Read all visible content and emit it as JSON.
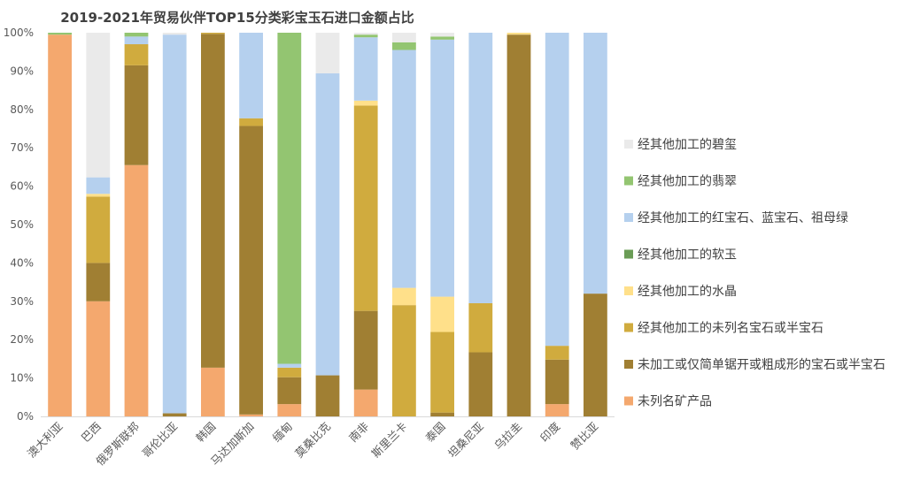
{
  "chart_data": {
    "type": "bar",
    "stacked": true,
    "percent_stacked": true,
    "title": "2019-2021年贸易伙伴TOP15分类彩宝玉石进口金额占比",
    "xlabel": "",
    "ylabel": "",
    "ylim": [
      0,
      100
    ],
    "yticks": [
      "0%",
      "10%",
      "20%",
      "30%",
      "40%",
      "50%",
      "60%",
      "70%",
      "80%",
      "90%",
      "100%"
    ],
    "grid": false,
    "legend_position": "right",
    "categories": [
      "澳大利亚",
      "巴西",
      "俄罗斯联邦",
      "哥伦比亚",
      "韩国",
      "马达加斯加",
      "缅甸",
      "莫桑比克",
      "南非",
      "斯里兰卡",
      "泰国",
      "坦桑尼亚",
      "乌拉圭",
      "印度",
      "赞比亚"
    ],
    "series": [
      {
        "name": "未列名矿产品",
        "color": "#f4a86e",
        "values": [
          99.5,
          30,
          65.5,
          0,
          12.7,
          0.5,
          3.2,
          0,
          7,
          0,
          0,
          0,
          0,
          3.2,
          0
        ]
      },
      {
        "name": "未加工或仅简单锯开或粗成形的宝石或半宝石",
        "color": "#a07f33",
        "values": [
          0,
          10,
          26,
          0.8,
          87,
          75.2,
          7,
          10.7,
          20.5,
          0,
          1,
          16.7,
          99.5,
          11.6,
          32
        ]
      },
      {
        "name": "经其他加工的未列名宝石或半宝石",
        "color": "#d0ab3e",
        "values": [
          0,
          17.3,
          5.5,
          0,
          0.3,
          2,
          2.5,
          0,
          53.5,
          29,
          21,
          12.8,
          0,
          3.6,
          0
        ]
      },
      {
        "name": "经其他加工的水晶",
        "color": "#ffe08a",
        "values": [
          0,
          0.7,
          0,
          0,
          0,
          0,
          0,
          0,
          1.3,
          4.5,
          9.2,
          0,
          0.5,
          0,
          0
        ]
      },
      {
        "name": "经其他加工的软玉",
        "color": "#6a9c56",
        "values": [
          0,
          0,
          0,
          0,
          0,
          0,
          0,
          0,
          0,
          0,
          0,
          0,
          0,
          0,
          0
        ]
      },
      {
        "name": "经其他加工的红宝石、蓝宝石、祖母绿",
        "color": "#b5d0ee",
        "values": [
          0,
          4.3,
          2,
          98.7,
          0,
          22.3,
          1,
          78.7,
          16.5,
          62,
          67,
          70.5,
          0,
          81.6,
          68
        ]
      },
      {
        "name": "经其他加工的翡翠",
        "color": "#93c571",
        "values": [
          0.5,
          0,
          1,
          0,
          0,
          0,
          86.3,
          0,
          0.7,
          2,
          0.8,
          0,
          0,
          0,
          0
        ]
      },
      {
        "name": "经其他加工的碧玺",
        "color": "#eaeaea",
        "values": [
          0,
          37.7,
          0,
          0.5,
          0,
          0,
          0,
          10.6,
          0.5,
          2.5,
          1,
          0,
          0,
          0,
          0
        ]
      }
    ]
  }
}
